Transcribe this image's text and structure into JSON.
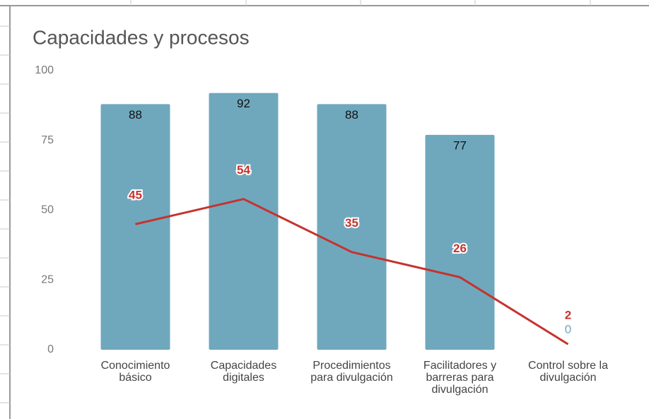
{
  "chart_data": {
    "type": "combo",
    "title": "Capacidades y procesos",
    "categories": [
      "Conocimiento básico",
      "Capacidades digitales",
      "Procedimientos para divulgación",
      "Facilitadores y barreras para divulgación",
      "Control sobre la divulgación"
    ],
    "series": [
      {
        "type": "bar",
        "color": "#6fa8bd",
        "values": [
          88,
          92,
          88,
          77,
          0
        ]
      },
      {
        "type": "line",
        "color": "#c5332e",
        "values": [
          45,
          54,
          35,
          26,
          2
        ]
      }
    ],
    "ylim": [
      0,
      100
    ],
    "yticks": [
      0,
      25,
      50,
      75,
      100
    ],
    "grid": false,
    "data_labels": true
  }
}
